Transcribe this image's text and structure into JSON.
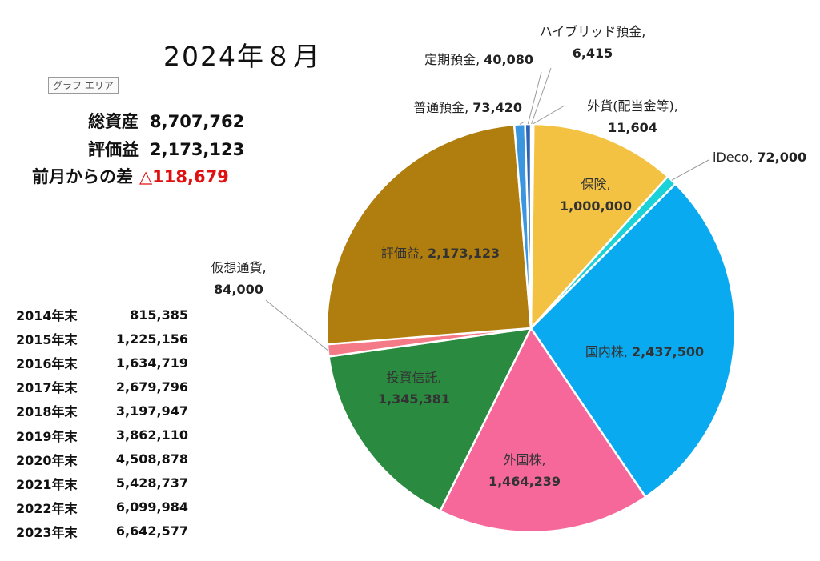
{
  "title": "2024年８月",
  "graph_area_tag": "グラフ エリア",
  "summary": {
    "total_label": "総資産",
    "total_value": "8,707,762",
    "gain_label": "評価益",
    "gain_value": "2,173,123",
    "diff_label": "前月からの差",
    "diff_value": "△118,679"
  },
  "history": [
    {
      "year": "2014年末",
      "value": "815,385"
    },
    {
      "year": "2015年末",
      "value": "1,225,156"
    },
    {
      "year": "2016年末",
      "value": "1,634,719"
    },
    {
      "year": "2017年末",
      "value": "2,679,796"
    },
    {
      "year": "2018年末",
      "value": "3,197,947"
    },
    {
      "year": "2019年末",
      "value": "3,862,110"
    },
    {
      "year": "2020年末",
      "value": "4,508,878"
    },
    {
      "year": "2021年末",
      "value": "5,428,737"
    },
    {
      "year": "2022年末",
      "value": "6,099,984"
    },
    {
      "year": "2023年末",
      "value": "6,642,577"
    }
  ],
  "chart_data": {
    "type": "pie",
    "title": "2024年８月",
    "slices": [
      {
        "name": "ハイブリッド預金",
        "value": 6415,
        "label": "6,415",
        "color": "#2b4d86"
      },
      {
        "name": "外貨(配当金等)",
        "value": 11604,
        "label": "11,604",
        "color": "#f0eede"
      },
      {
        "name": "保険",
        "value": 1000000,
        "label": "1,000,000",
        "color": "#f4c242"
      },
      {
        "name": "iDeco",
        "value": 72000,
        "label": "72,000",
        "color": "#1ad3d8"
      },
      {
        "name": "国内株",
        "value": 2437500,
        "label": "2,437,500",
        "color": "#0aaaf0"
      },
      {
        "name": "外国株",
        "value": 1464239,
        "label": "1,464,239",
        "color": "#f7689a"
      },
      {
        "name": "投資信託",
        "value": 1345381,
        "label": "1,345,381",
        "color": "#2a8a40"
      },
      {
        "name": "仮想通貨",
        "value": 84000,
        "label": "84,000",
        "color": "#f47a88"
      },
      {
        "name": "評価益",
        "value": 2173123,
        "label": "2,173,123",
        "color": "#b07e0e"
      },
      {
        "name": "普通預金",
        "value": 73420,
        "label": "73,420",
        "color": "#3a96de"
      },
      {
        "name": "定期預金",
        "value": 40080,
        "label": "40,080",
        "color": "#2d63b4"
      }
    ]
  }
}
